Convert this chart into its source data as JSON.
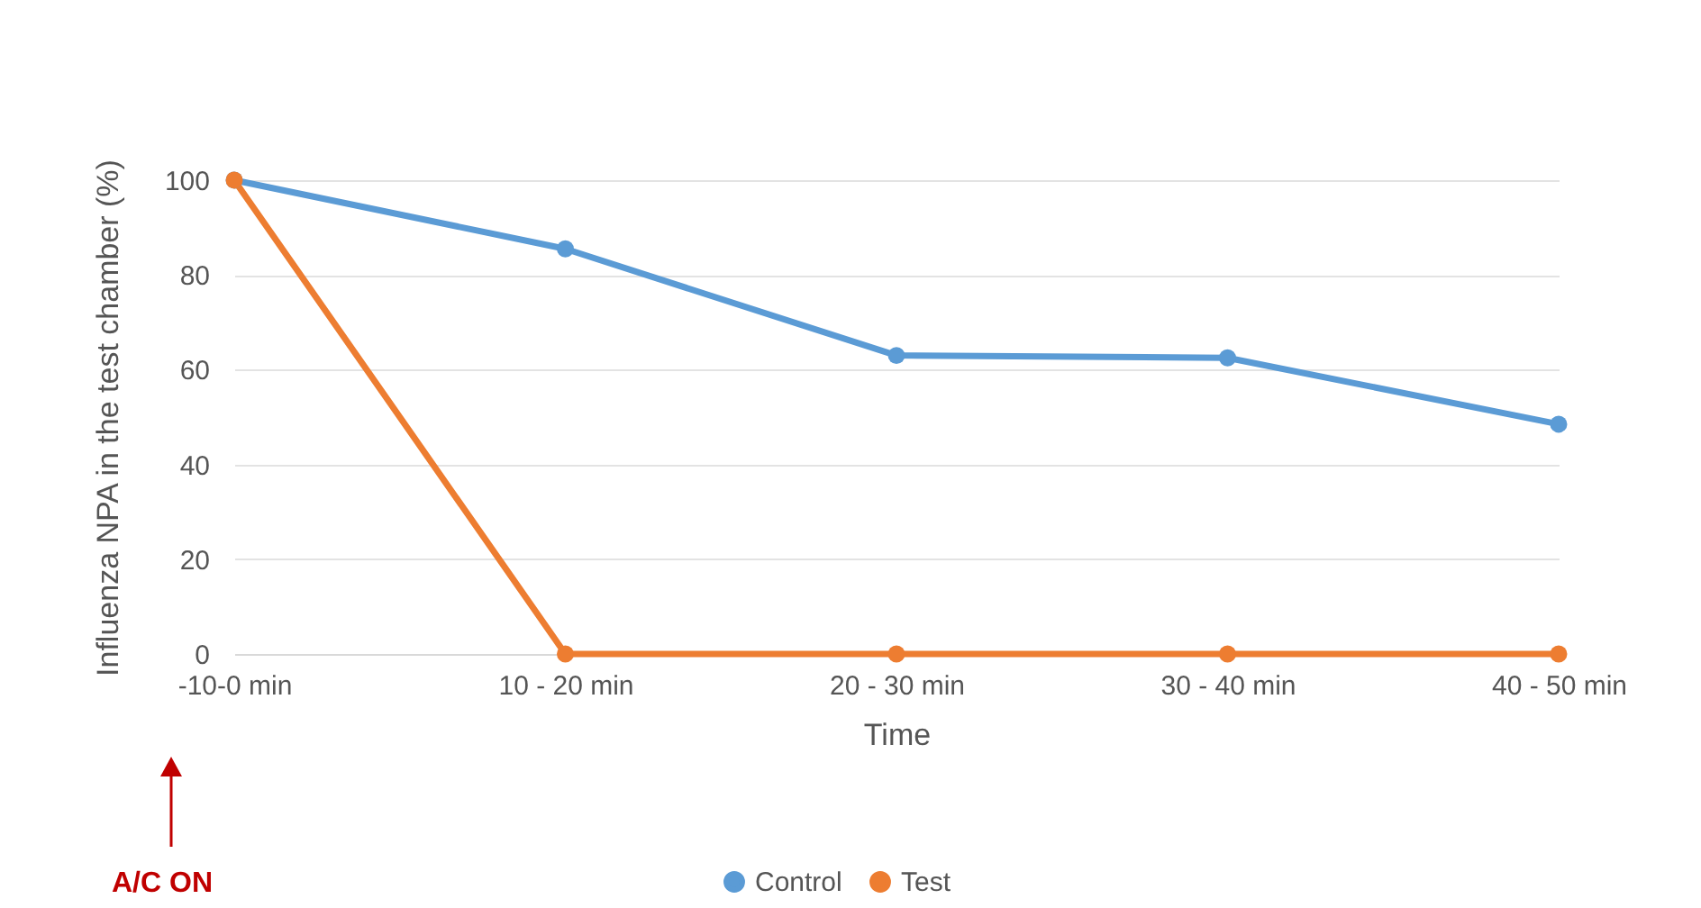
{
  "chart_data": {
    "type": "line",
    "xlabel": "Time",
    "ylabel": "Influenza NPA in the test chamber (%)",
    "categories": [
      "-10-0 min",
      "10 - 20 min",
      "20 - 30 min",
      "30 - 40 min",
      "40 - 50 min"
    ],
    "series": [
      {
        "name": "Control",
        "color": "#5b9bd5",
        "values": [
          100,
          85.5,
          63,
          62.5,
          48.5
        ]
      },
      {
        "name": "Test",
        "color": "#ed7d31",
        "values": [
          100,
          0,
          0,
          0,
          0
        ]
      }
    ],
    "ylim": [
      0,
      100
    ],
    "yticks": [
      0,
      20,
      40,
      60,
      80,
      100
    ],
    "grid": "y",
    "legend": "bottom",
    "marker": "circle",
    "line_style": "solid",
    "annotations": [
      "A/C ON"
    ]
  }
}
